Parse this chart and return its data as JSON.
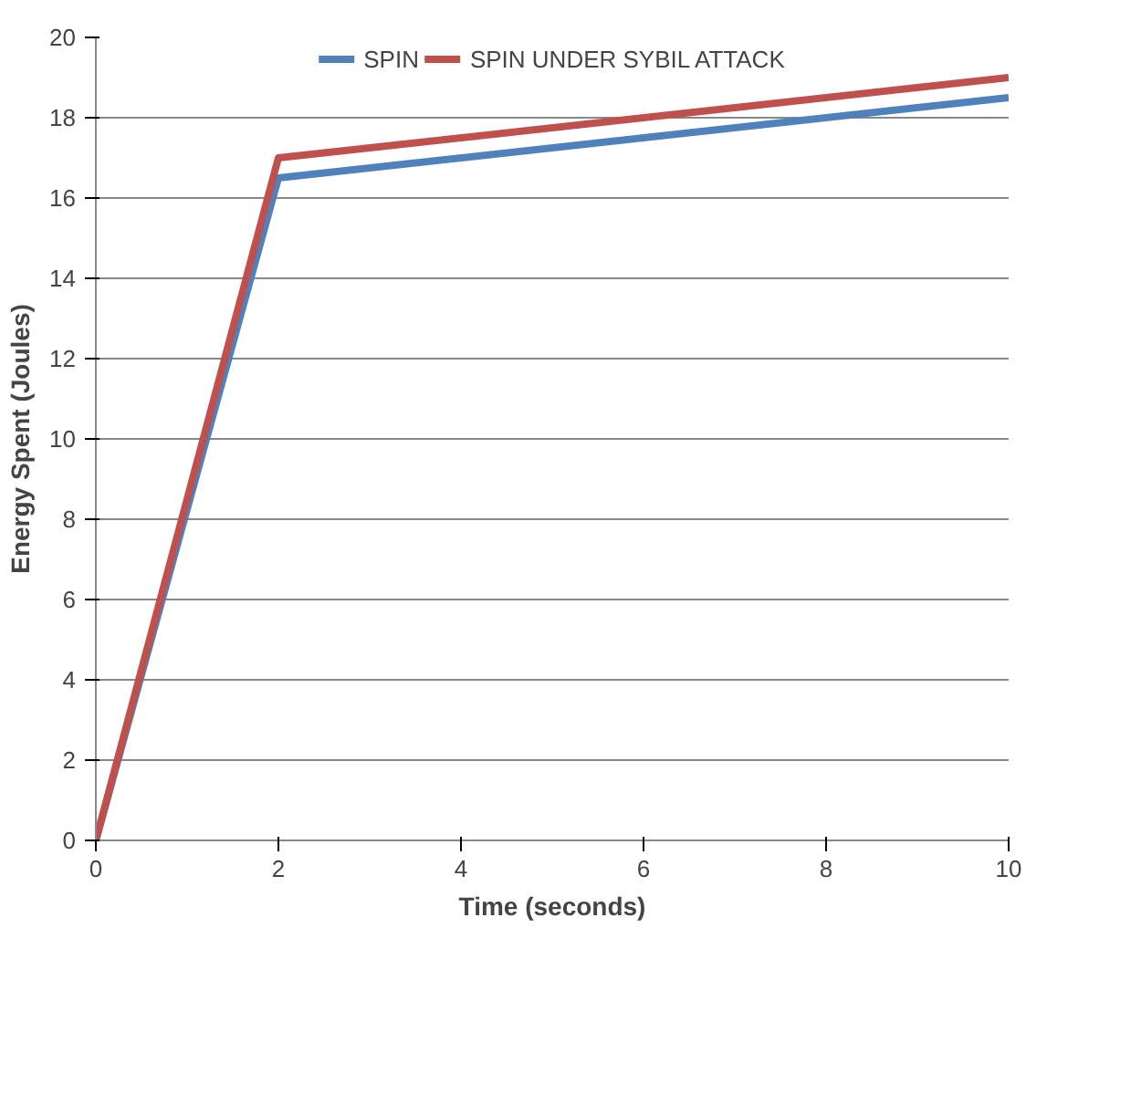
{
  "chart_data": {
    "type": "line",
    "xlabel": "Time (seconds)",
    "ylabel": "Energy Spent (Joules)",
    "x": [
      0,
      2,
      10
    ],
    "series": [
      {
        "name": "SPIN",
        "color": "#4f81bd",
        "values": [
          0,
          16.5,
          18.5
        ]
      },
      {
        "name": "SPIN UNDER SYBIL ATTACK",
        "color": "#c0504d",
        "values": [
          0,
          17,
          19
        ]
      }
    ],
    "xlim": [
      0,
      10
    ],
    "xticks": [
      0,
      2,
      4,
      6,
      8,
      10
    ],
    "ylim": [
      0,
      20
    ],
    "yticks": [
      0,
      2,
      4,
      6,
      8,
      10,
      12,
      14,
      16,
      18,
      20
    ],
    "grid": "y",
    "legend": "top",
    "marker": "none",
    "line_style": "solid"
  }
}
